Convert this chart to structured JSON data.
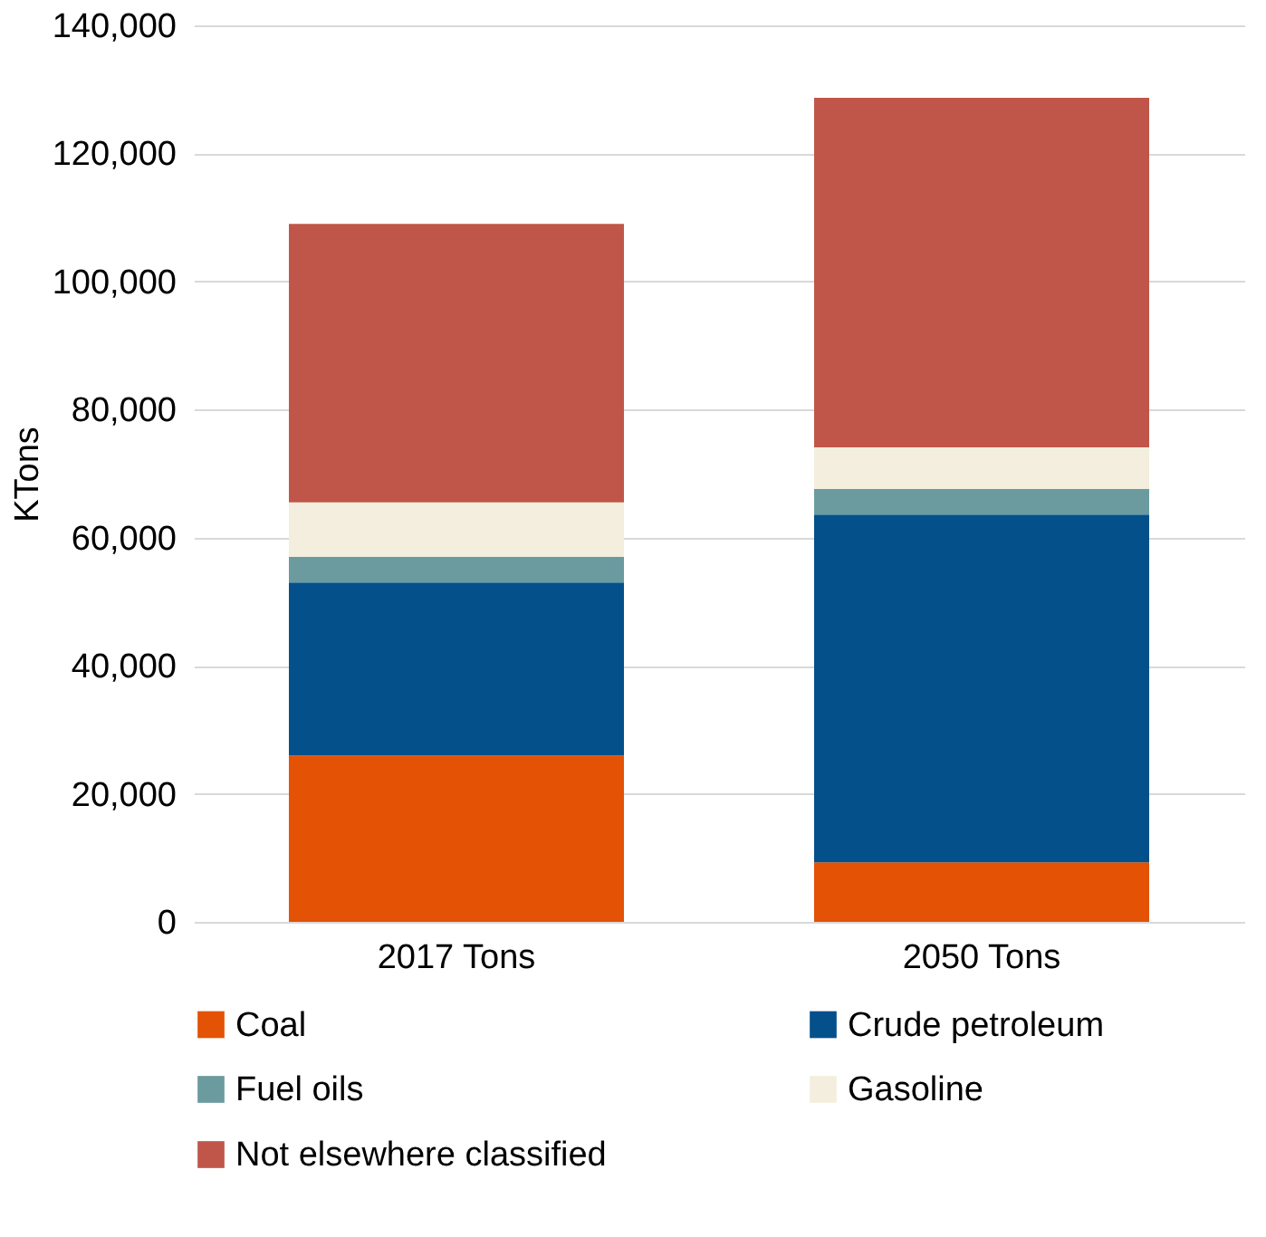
{
  "chart_data": {
    "type": "bar",
    "stacked": true,
    "ylabel": "KTons",
    "categories": [
      "2017 Tons",
      "2050 Tons"
    ],
    "series": [
      {
        "name": "Coal",
        "color": "#e35205",
        "values": [
          26000,
          9300
        ]
      },
      {
        "name": "Crude petroleum",
        "color": "#03508b",
        "values": [
          27000,
          54300
        ]
      },
      {
        "name": "Fuel oils",
        "color": "#6b9a9f",
        "values": [
          4000,
          4000
        ]
      },
      {
        "name": "Gasoline",
        "color": "#f3eedd",
        "values": [
          8500,
          6500
        ]
      },
      {
        "name": "Not elsewhere classified",
        "color": "#c0564a",
        "values": [
          43500,
          54600
        ]
      }
    ],
    "ylim": [
      0,
      140000
    ],
    "yticks": [
      0,
      {
        "value": 20000,
        "label": "20,000"
      },
      {
        "value": 40000,
        "label": "40,000"
      },
      {
        "value": 60000,
        "label": "60,000"
      },
      {
        "value": 80000,
        "label": "80,000"
      },
      {
        "value": 100000,
        "label": "100,000"
      },
      {
        "value": 120000,
        "label": "120,000"
      },
      {
        "value": 140000,
        "label": "140,000"
      }
    ],
    "grid": "y",
    "legend": "bottom"
  }
}
